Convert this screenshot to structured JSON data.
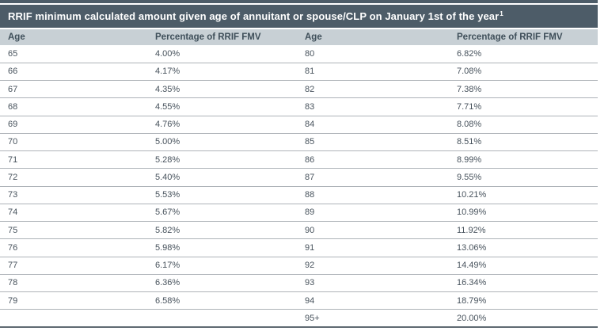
{
  "title": "RRIF minimum calculated amount given age of annuitant or spouse/CLP on January 1st of the year",
  "title_superscript": "1",
  "table": {
    "headers": [
      "Age",
      "Percentage of RRIF FMV",
      "Age",
      "Percentage of RRIF FMV"
    ],
    "rows": [
      [
        "65",
        "4.00%",
        "80",
        "6.82%"
      ],
      [
        "66",
        "4.17%",
        "81",
        "7.08%"
      ],
      [
        "67",
        "4.35%",
        "82",
        "7.38%"
      ],
      [
        "68",
        "4.55%",
        "83",
        "7.71%"
      ],
      [
        "69",
        "4.76%",
        "84",
        "8.08%"
      ],
      [
        "70",
        "5.00%",
        "85",
        "8.51%"
      ],
      [
        "71",
        "5.28%",
        "86",
        "8.99%"
      ],
      [
        "72",
        "5.40%",
        "87",
        "9.55%"
      ],
      [
        "73",
        "5.53%",
        "88",
        "10.21%"
      ],
      [
        "74",
        "5.67%",
        "89",
        "10.99%"
      ],
      [
        "75",
        "5.82%",
        "90",
        "11.92%"
      ],
      [
        "76",
        "5.98%",
        "91",
        "13.06%"
      ],
      [
        "77",
        "6.17%",
        "92",
        "14.49%"
      ],
      [
        "78",
        "6.36%",
        "93",
        "16.34%"
      ],
      [
        "79",
        "6.58%",
        "94",
        "18.79%"
      ],
      [
        "",
        "",
        "95+",
        "20.00%"
      ]
    ]
  },
  "colors": {
    "header_bar_bg": "#4d5c68",
    "column_header_bg": "#c8d0d5",
    "column_header_text": "#3f4f5a",
    "row_text": "#47525c",
    "row_divider": "#aeb3b8",
    "bottom_border": "#5f6a72"
  }
}
